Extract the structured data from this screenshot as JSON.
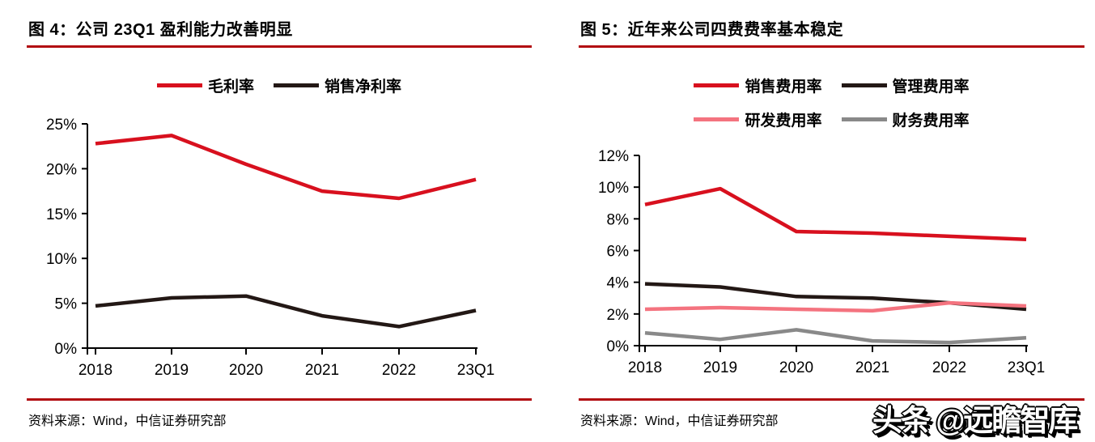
{
  "colors": {
    "rule_red": "#b20b10",
    "axis": "#000000",
    "series_red": "#d8101e",
    "series_black": "#231815",
    "series_pink": "#f4737f",
    "series_gray": "#898989"
  },
  "watermark": {
    "text": "头条 @远瞻智库"
  },
  "figures": [
    {
      "title": "图 4：公司 23Q1 盈利能力改善明显",
      "source": "资料来源：Wind，中信证券研究部"
    },
    {
      "title": "图 5：近年来公司四费费率基本稳定",
      "source": "资料来源：Wind，中信证券研究部"
    }
  ],
  "chart_data": [
    {
      "type": "line",
      "title": "图 4：公司 23Q1 盈利能力改善明显",
      "categories": [
        "2018",
        "2019",
        "2020",
        "2021",
        "2022",
        "23Q1"
      ],
      "series": [
        {
          "name": "毛利率",
          "color": "#d8101e",
          "values": [
            22.8,
            23.7,
            20.5,
            17.5,
            16.7,
            18.8
          ]
        },
        {
          "name": "销售净利率",
          "color": "#231815",
          "values": [
            4.7,
            5.6,
            5.8,
            3.6,
            2.4,
            4.2
          ]
        }
      ],
      "xlabel": "",
      "ylabel": "",
      "ylim": [
        0,
        25
      ],
      "ytick_step": 5,
      "ytick_labels": [
        "0%",
        "5%",
        "10%",
        "15%",
        "20%",
        "25%"
      ],
      "grid": false,
      "legend_position": "top",
      "legend_rows": [
        [
          0,
          1
        ]
      ]
    },
    {
      "type": "line",
      "title": "图 5：近年来公司四费费率基本稳定",
      "categories": [
        "2018",
        "2019",
        "2020",
        "2021",
        "2022",
        "23Q1"
      ],
      "series": [
        {
          "name": "销售费用率",
          "color": "#d8101e",
          "values": [
            8.9,
            9.9,
            7.2,
            7.1,
            6.9,
            6.7
          ]
        },
        {
          "name": "管理费用率",
          "color": "#231815",
          "values": [
            3.9,
            3.7,
            3.1,
            3.0,
            2.7,
            2.3
          ]
        },
        {
          "name": "研发费用率",
          "color": "#f4737f",
          "values": [
            2.3,
            2.4,
            2.3,
            2.2,
            2.7,
            2.5
          ]
        },
        {
          "name": "财务费用率",
          "color": "#898989",
          "values": [
            0.8,
            0.4,
            1.0,
            0.3,
            0.2,
            0.5
          ]
        }
      ],
      "xlabel": "",
      "ylabel": "",
      "ylim": [
        0,
        12
      ],
      "ytick_step": 2,
      "ytick_labels": [
        "0%",
        "2%",
        "4%",
        "6%",
        "8%",
        "10%",
        "12%"
      ],
      "grid": false,
      "legend_position": "top",
      "legend_rows": [
        [
          0,
          1
        ],
        [
          2,
          3
        ]
      ]
    }
  ]
}
